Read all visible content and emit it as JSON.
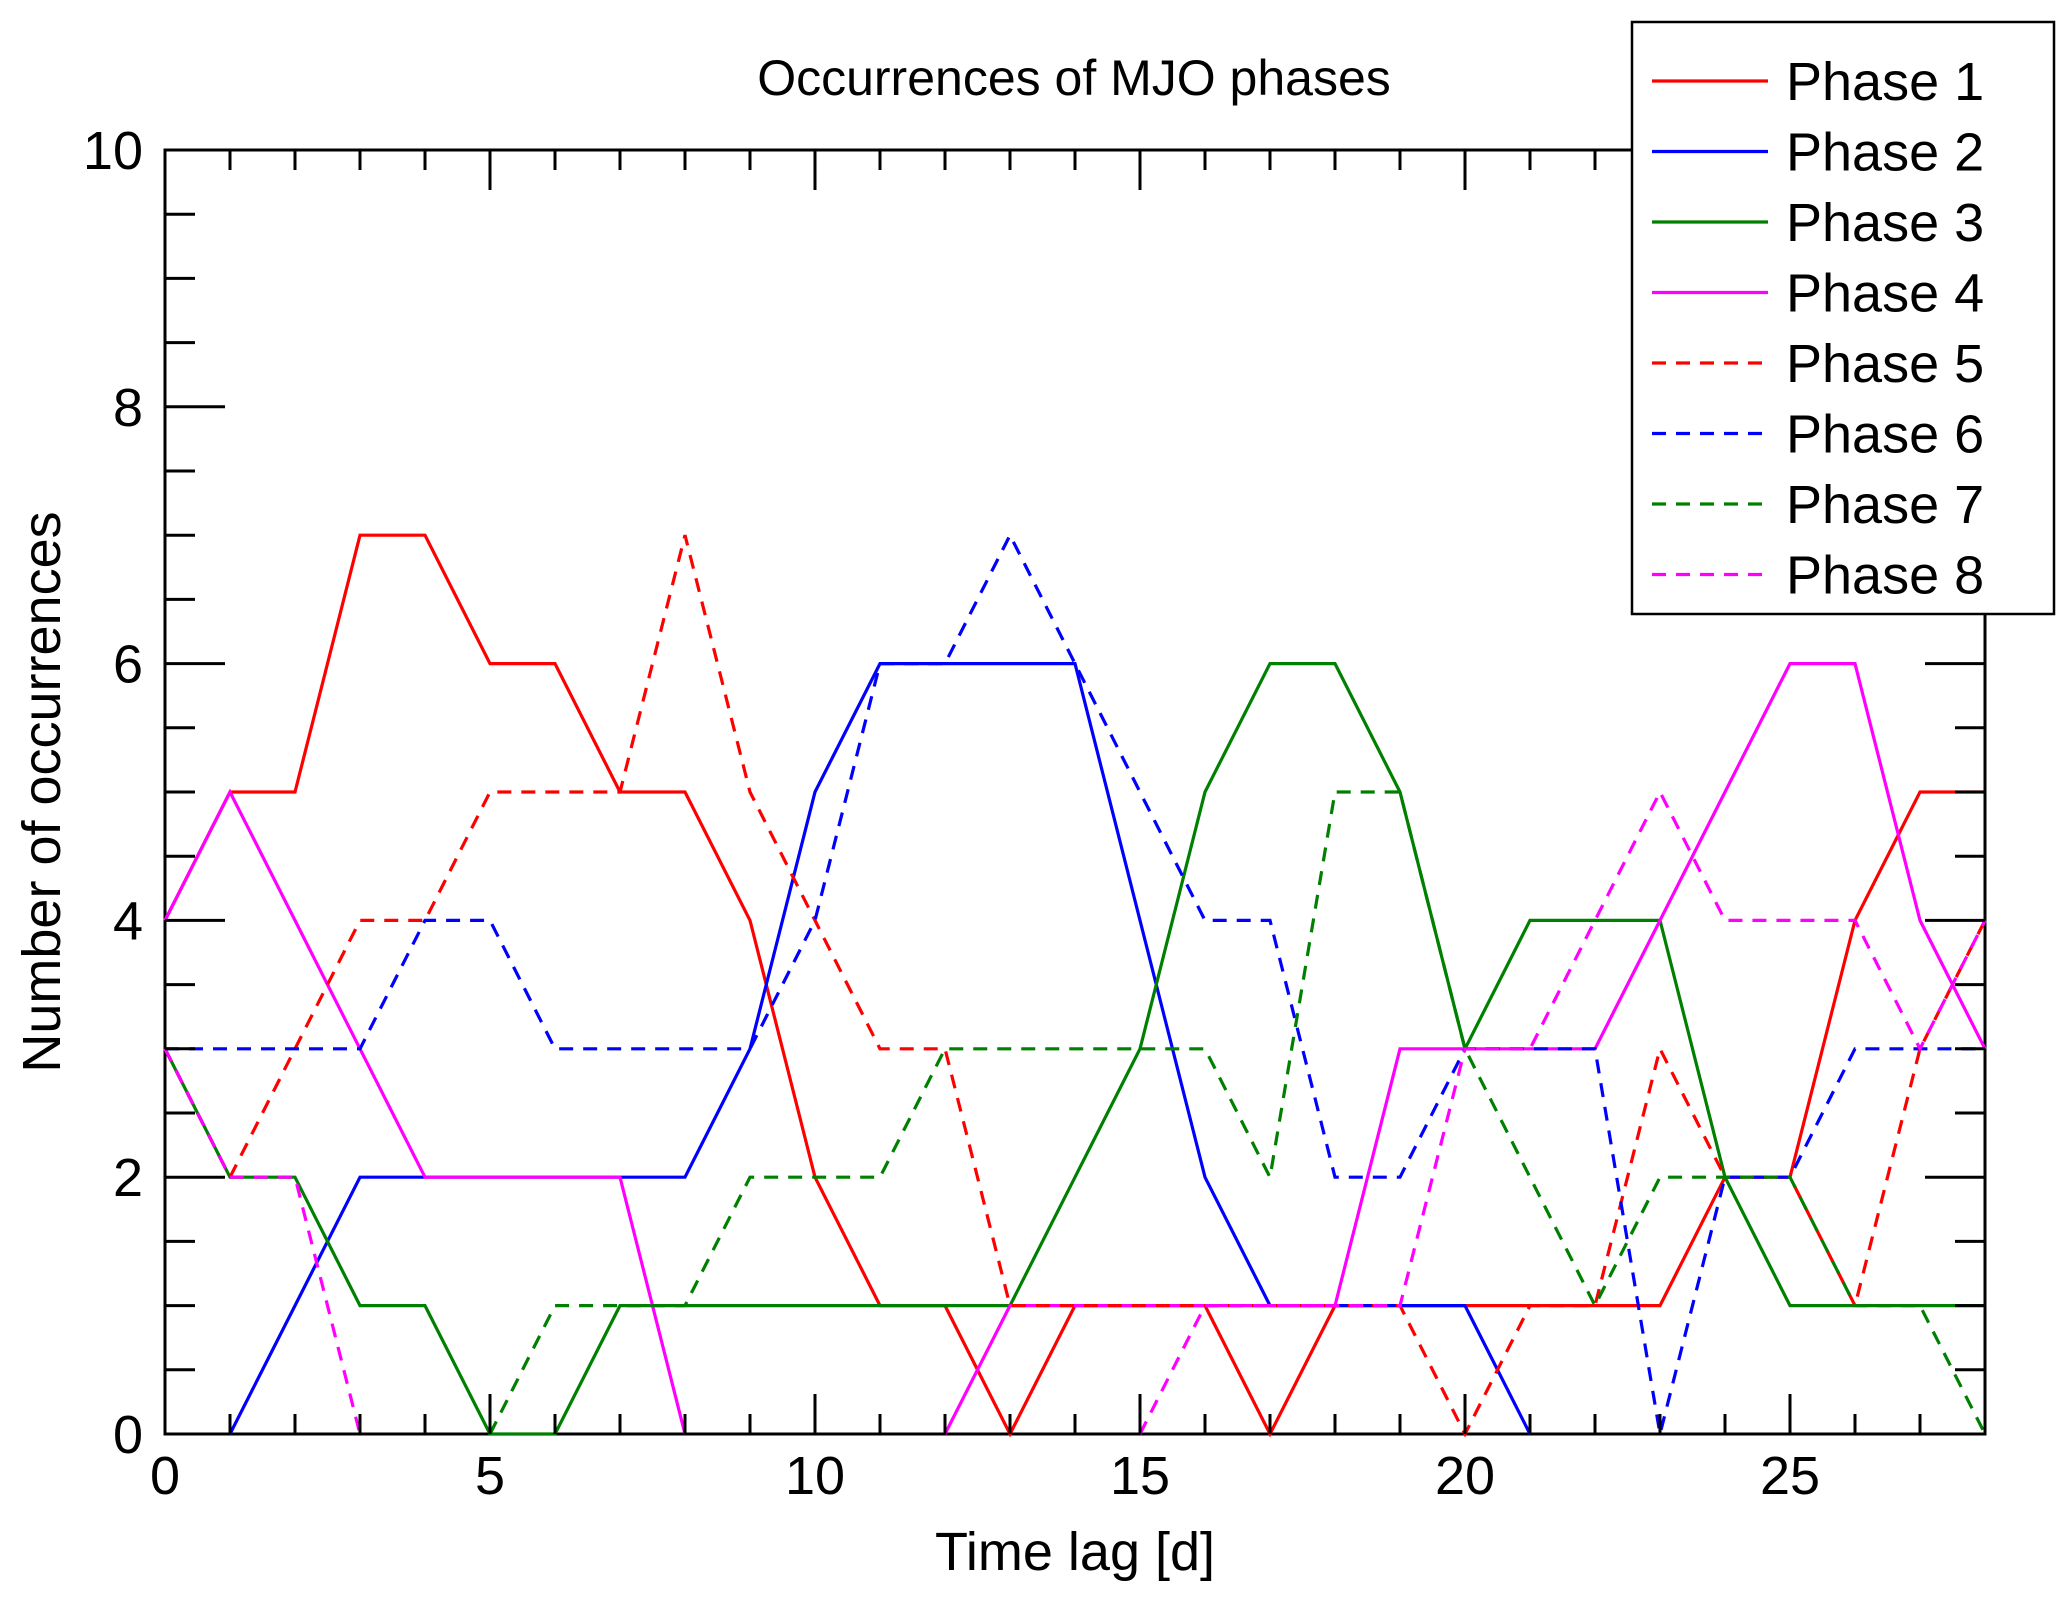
{
  "chart_data": {
    "type": "line",
    "title": "Occurrences of MJO phases",
    "xlabel": "Time lag [d]",
    "ylabel": "Number of occurrences",
    "xlim": [
      0,
      28
    ],
    "ylim": [
      0,
      10
    ],
    "x_ticks": [
      "0",
      "5",
      "10",
      "15",
      "20",
      "25"
    ],
    "y_ticks": [
      "0",
      "2",
      "4",
      "6",
      "8",
      "10"
    ],
    "grid": false,
    "legend_position": "top-right",
    "x": [
      0,
      1,
      2,
      3,
      4,
      5,
      6,
      7,
      8,
      9,
      10,
      11,
      12,
      13,
      14,
      15,
      16,
      17,
      18,
      19,
      20,
      21,
      22,
      23,
      24,
      25,
      26,
      27,
      28
    ],
    "series": [
      {
        "name": "Phase 1",
        "color": "#ff0000",
        "dash": "solid",
        "values": [
          4,
          5,
          5,
          7,
          7,
          6,
          6,
          5,
          5,
          4,
          2,
          1,
          1,
          0,
          1,
          1,
          1,
          0,
          1,
          1,
          1,
          1,
          1,
          1,
          2,
          2,
          4,
          5,
          5
        ]
      },
      {
        "name": "Phase 2",
        "color": "#0000ff",
        "dash": "solid",
        "values": [
          null,
          0,
          1,
          2,
          2,
          2,
          2,
          2,
          2,
          3,
          5,
          6,
          6,
          6,
          6,
          4,
          2,
          1,
          1,
          1,
          1,
          0,
          null,
          null,
          null,
          null,
          null,
          null,
          null
        ]
      },
      {
        "name": "Phase 3",
        "color": "#008000",
        "dash": "solid",
        "values": [
          3,
          2,
          2,
          1,
          1,
          0,
          0,
          1,
          1,
          1,
          1,
          1,
          1,
          1,
          2,
          3,
          5,
          6,
          6,
          5,
          3,
          4,
          4,
          4,
          2,
          1,
          1,
          1,
          1
        ]
      },
      {
        "name": "Phase 4",
        "color": "#ff00ff",
        "dash": "solid",
        "values": [
          4,
          5,
          4,
          3,
          2,
          2,
          2,
          2,
          0,
          null,
          null,
          null,
          0,
          1,
          1,
          1,
          1,
          1,
          1,
          3,
          3,
          3,
          3,
          4,
          5,
          6,
          6,
          4,
          3
        ]
      },
      {
        "name": "Phase 5",
        "color": "#ff0000",
        "dash": "dashed",
        "values": [
          3,
          2,
          3,
          4,
          4,
          5,
          5,
          5,
          7,
          5,
          4,
          3,
          3,
          1,
          1,
          1,
          1,
          1,
          1,
          1,
          0,
          1,
          1,
          3,
          2,
          2,
          1,
          3,
          4
        ]
      },
      {
        "name": "Phase 6",
        "color": "#0000ff",
        "dash": "dashed",
        "values": [
          3,
          3,
          3,
          3,
          4,
          4,
          3,
          3,
          3,
          3,
          4,
          6,
          6,
          7,
          6,
          5,
          4,
          4,
          2,
          2,
          3,
          3,
          3,
          0,
          2,
          2,
          3,
          3,
          3
        ]
      },
      {
        "name": "Phase 7",
        "color": "#008000",
        "dash": "dashed",
        "values": [
          3,
          2,
          2,
          null,
          null,
          0,
          1,
          1,
          1,
          2,
          2,
          2,
          3,
          3,
          3,
          3,
          3,
          2,
          5,
          5,
          3,
          2,
          1,
          2,
          2,
          2,
          1,
          1,
          0
        ]
      },
      {
        "name": "Phase 8",
        "color": "#ff00ff",
        "dash": "dashed",
        "values": [
          3,
          2,
          2,
          0,
          null,
          null,
          null,
          null,
          null,
          null,
          null,
          null,
          null,
          null,
          null,
          0,
          1,
          1,
          1,
          1,
          3,
          3,
          4,
          5,
          4,
          4,
          4,
          3,
          4
        ]
      }
    ]
  }
}
